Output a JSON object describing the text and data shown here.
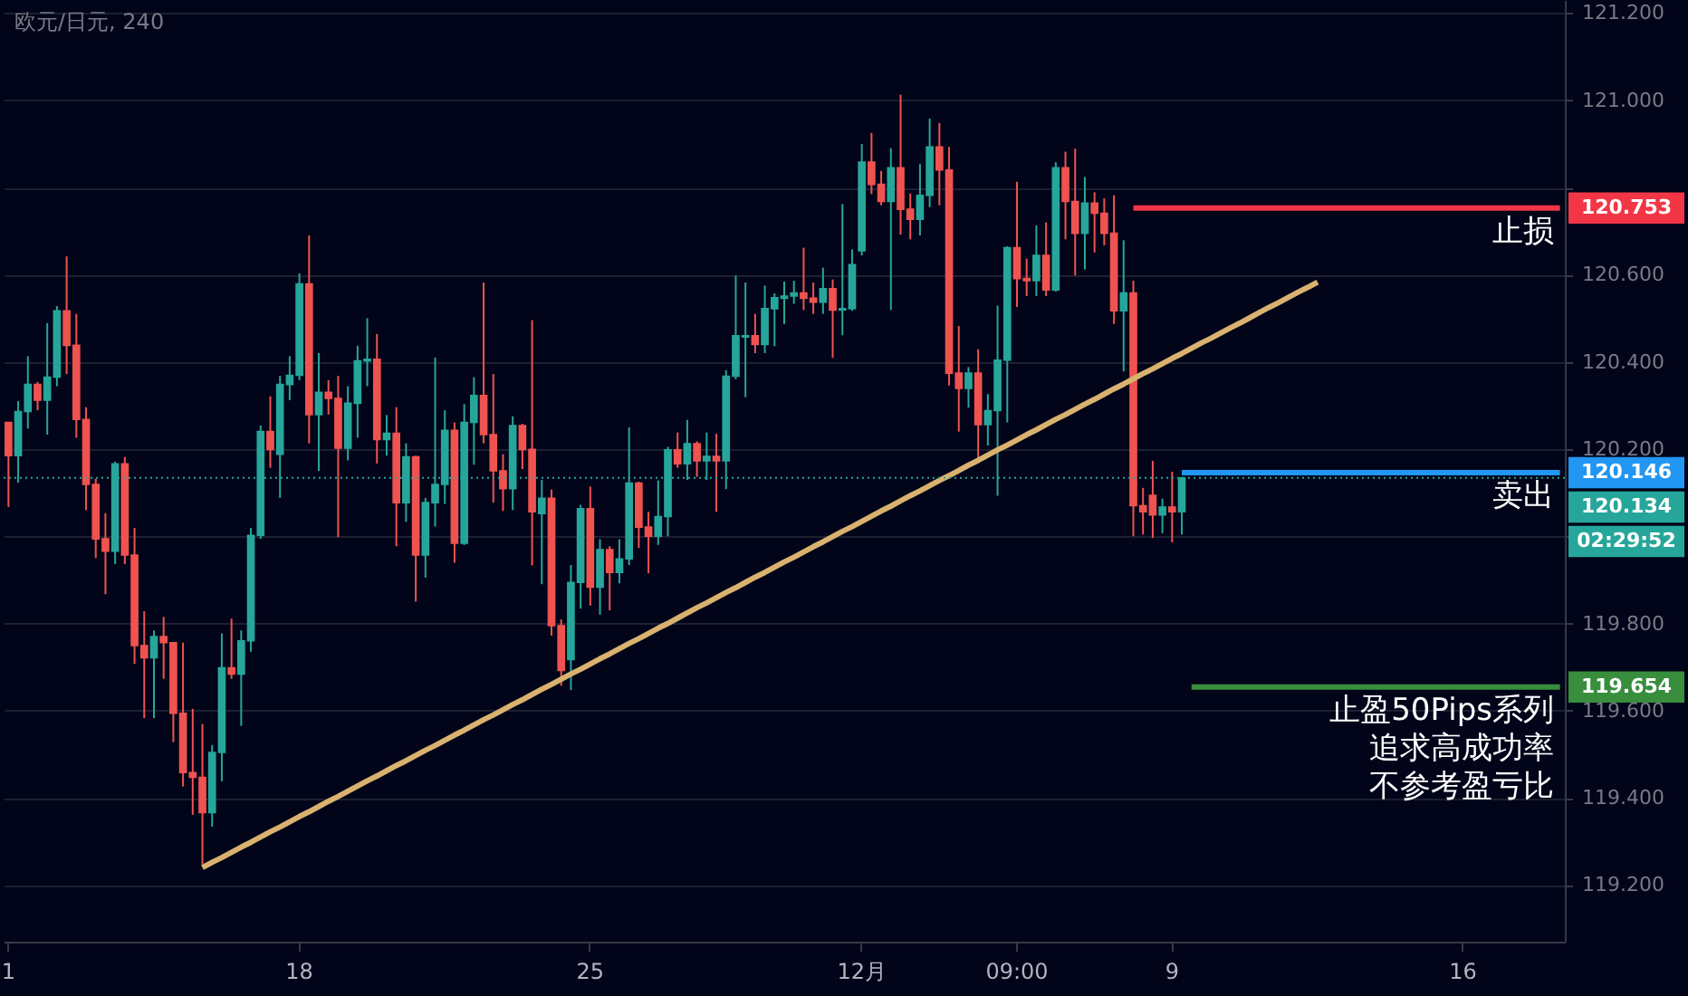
{
  "chart_data": {
    "type": "candlestick",
    "title": "欧元/日元, 240",
    "categories": [
      "1",
      null,
      null,
      null,
      null,
      null,
      null,
      null,
      null,
      null,
      null,
      null,
      null,
      null,
      null,
      null,
      null,
      null,
      null,
      null,
      null,
      null,
      null,
      null,
      null,
      null,
      null,
      null,
      null,
      null,
      "18",
      null,
      null,
      null,
      null,
      null,
      null,
      null,
      null,
      null,
      null,
      null,
      null,
      null,
      null,
      null,
      null,
      null,
      null,
      null,
      null,
      null,
      null,
      null,
      null,
      null,
      null,
      null,
      null,
      null,
      "25",
      null,
      null,
      null,
      null,
      null,
      null,
      null,
      null,
      null,
      null,
      null,
      null,
      null,
      null,
      null,
      null,
      null,
      null,
      null,
      null,
      null,
      null,
      null,
      null,
      null,
      null,
      null,
      "12月",
      null,
      null,
      null,
      null,
      null,
      null,
      null,
      null,
      null,
      null,
      null,
      null,
      null,
      null,
      null,
      "09:00",
      null,
      null,
      null,
      null,
      null,
      null,
      null,
      null,
      null,
      null,
      null,
      null,
      null,
      null,
      null,
      "9",
      null,
      null,
      null,
      null,
      null,
      null,
      null,
      null,
      null,
      null,
      null,
      null,
      null,
      null,
      null,
      null,
      null,
      null,
      null,
      null,
      null,
      null,
      null,
      null,
      null,
      null,
      null,
      null,
      null,
      "16",
      null,
      null,
      null,
      null,
      null,
      null,
      null,
      null,
      null,
      null
    ],
    "ohlc": [
      [
        120.261,
        120.261,
        120.067,
        120.185
      ],
      [
        120.185,
        120.31,
        120.123,
        120.286
      ],
      [
        120.286,
        120.413,
        120.247,
        120.348
      ],
      [
        120.348,
        120.354,
        120.289,
        120.312
      ],
      [
        120.312,
        120.489,
        120.233,
        120.365
      ],
      [
        120.365,
        120.528,
        120.344,
        120.517
      ],
      [
        120.517,
        120.642,
        120.372,
        120.438
      ],
      [
        120.438,
        120.51,
        120.226,
        120.268
      ],
      [
        120.268,
        120.296,
        120.06,
        120.119
      ],
      [
        120.119,
        120.132,
        119.95,
        119.994
      ],
      [
        119.994,
        120.053,
        119.867,
        119.966
      ],
      [
        119.966,
        120.171,
        119.936,
        120.166
      ],
      [
        120.166,
        120.182,
        119.936,
        119.957
      ],
      [
        119.957,
        120.019,
        119.707,
        119.749
      ],
      [
        119.749,
        119.828,
        119.583,
        119.721
      ],
      [
        119.721,
        119.784,
        119.583,
        119.77
      ],
      [
        119.77,
        119.815,
        119.673,
        119.756
      ],
      [
        119.756,
        119.756,
        119.528,
        119.594
      ],
      [
        119.594,
        119.756,
        119.426,
        119.458
      ],
      [
        119.458,
        119.604,
        119.361,
        119.447
      ],
      [
        119.447,
        119.569,
        119.247,
        119.366
      ],
      [
        119.366,
        119.521,
        119.334,
        119.504
      ],
      [
        119.504,
        119.777,
        119.438,
        119.698
      ],
      [
        119.698,
        119.811,
        119.673,
        119.684
      ],
      [
        119.684,
        119.784,
        119.565,
        119.76
      ],
      [
        119.76,
        120.019,
        119.735,
        120.002
      ],
      [
        120.002,
        120.254,
        119.994,
        120.24
      ],
      [
        120.24,
        120.321,
        120.157,
        120.199
      ],
      [
        120.188,
        120.368,
        120.088,
        120.348
      ],
      [
        120.348,
        120.413,
        120.312,
        120.369
      ],
      [
        120.369,
        120.603,
        120.358,
        120.579
      ],
      [
        120.579,
        120.69,
        120.213,
        120.279
      ],
      [
        120.279,
        120.42,
        120.15,
        120.33
      ],
      [
        120.33,
        120.358,
        120.279,
        120.316
      ],
      [
        120.316,
        120.368,
        119.998,
        120.202
      ],
      [
        120.202,
        120.344,
        120.174,
        120.305
      ],
      [
        120.305,
        120.437,
        120.226,
        120.402
      ],
      [
        120.402,
        120.5,
        120.344,
        120.406
      ],
      [
        120.406,
        120.464,
        120.167,
        120.222
      ],
      [
        120.222,
        120.278,
        120.185,
        120.236
      ],
      [
        120.236,
        120.296,
        119.977,
        120.077
      ],
      [
        120.077,
        120.213,
        120.033,
        120.182
      ],
      [
        120.182,
        120.185,
        119.85,
        119.957
      ],
      [
        119.957,
        120.088,
        119.905,
        120.077
      ],
      [
        120.077,
        120.41,
        120.022,
        120.119
      ],
      [
        120.119,
        120.289,
        120.074,
        120.243
      ],
      [
        120.243,
        120.261,
        119.939,
        119.984
      ],
      [
        119.984,
        120.303,
        119.98,
        120.261
      ],
      [
        120.261,
        120.365,
        120.164,
        120.323
      ],
      [
        120.323,
        120.582,
        120.213,
        120.233
      ],
      [
        120.233,
        120.372,
        120.077,
        120.15
      ],
      [
        120.15,
        120.188,
        120.058,
        120.109
      ],
      [
        120.109,
        120.275,
        120.06,
        120.254
      ],
      [
        120.254,
        120.258,
        120.154,
        120.199
      ],
      [
        120.199,
        120.496,
        119.933,
        120.056
      ],
      [
        120.052,
        120.129,
        119.89,
        120.087
      ],
      [
        120.087,
        120.107,
        119.772,
        119.795
      ],
      [
        119.795,
        119.809,
        119.657,
        119.692
      ],
      [
        119.717,
        119.934,
        119.647,
        119.894
      ],
      [
        119.894,
        120.072,
        119.834,
        120.063
      ],
      [
        120.063,
        120.114,
        119.841,
        119.883
      ],
      [
        119.883,
        119.993,
        119.82,
        119.969
      ],
      [
        119.969,
        119.977,
        119.83,
        119.917
      ],
      [
        119.917,
        119.993,
        119.892,
        119.948
      ],
      [
        119.948,
        120.25,
        119.934,
        120.122
      ],
      [
        120.122,
        120.125,
        119.973,
        120.021
      ],
      [
        120.021,
        120.056,
        119.915,
        120.0
      ],
      [
        120.0,
        120.128,
        119.98,
        120.045
      ],
      [
        120.045,
        120.205,
        120.0,
        120.198
      ],
      [
        120.198,
        120.238,
        120.157,
        120.166
      ],
      [
        120.166,
        120.267,
        120.129,
        120.212
      ],
      [
        120.212,
        120.218,
        120.136,
        120.173
      ],
      [
        120.173,
        120.238,
        120.129,
        120.183
      ],
      [
        120.183,
        120.235,
        120.056,
        120.173
      ],
      [
        120.173,
        120.381,
        120.108,
        120.367
      ],
      [
        120.367,
        120.598,
        120.36,
        120.46
      ],
      [
        120.457,
        120.582,
        120.319,
        120.46
      ],
      [
        120.46,
        120.51,
        120.42,
        120.44
      ],
      [
        120.44,
        120.575,
        120.42,
        120.522
      ],
      [
        120.522,
        120.557,
        120.436,
        120.547
      ],
      [
        120.546,
        120.584,
        120.487,
        120.551
      ],
      [
        120.551,
        120.586,
        120.533,
        120.558
      ],
      [
        120.558,
        120.662,
        120.519,
        120.546
      ],
      [
        120.546,
        120.582,
        120.51,
        120.537
      ],
      [
        120.537,
        120.616,
        120.51,
        120.568
      ],
      [
        120.568,
        120.589,
        120.409,
        120.519
      ],
      [
        120.519,
        120.762,
        120.461,
        120.522
      ],
      [
        120.522,
        120.658,
        120.517,
        120.623
      ],
      [
        120.655,
        120.9,
        120.644,
        120.858
      ],
      [
        120.858,
        120.925,
        120.785,
        120.807
      ],
      [
        120.807,
        120.838,
        120.759,
        120.768
      ],
      [
        120.768,
        120.89,
        120.519,
        120.845
      ],
      [
        120.845,
        121.013,
        120.692,
        120.75
      ],
      [
        120.75,
        120.786,
        120.681,
        120.727
      ],
      [
        120.727,
        120.854,
        120.69,
        120.782
      ],
      [
        120.782,
        120.958,
        120.755,
        120.893
      ],
      [
        120.893,
        120.948,
        120.759,
        120.84
      ],
      [
        120.84,
        120.893,
        120.346,
        120.374
      ],
      [
        120.374,
        120.482,
        120.24,
        120.339
      ],
      [
        120.339,
        120.388,
        120.295,
        120.374
      ],
      [
        120.374,
        120.429,
        120.18,
        120.256
      ],
      [
        120.256,
        120.326,
        120.208,
        120.288
      ],
      [
        120.288,
        120.529,
        120.093,
        120.404
      ],
      [
        120.404,
        120.665,
        120.261,
        120.662
      ],
      [
        120.662,
        120.813,
        120.526,
        120.591
      ],
      [
        120.591,
        120.637,
        120.551,
        120.586
      ],
      [
        120.586,
        120.713,
        120.551,
        120.644
      ],
      [
        120.644,
        120.72,
        120.551,
        120.565
      ],
      [
        120.565,
        120.858,
        120.561,
        120.845
      ],
      [
        120.845,
        120.882,
        120.681,
        120.768
      ],
      [
        120.768,
        120.889,
        120.598,
        120.695
      ],
      [
        120.695,
        120.824,
        120.612,
        120.764
      ],
      [
        120.764,
        120.789,
        120.651,
        120.741
      ],
      [
        120.741,
        120.775,
        120.667,
        120.695
      ],
      [
        120.695,
        120.782,
        120.487,
        120.517
      ],
      [
        120.517,
        120.679,
        120.378,
        120.558
      ],
      [
        120.558,
        120.586,
        120.0,
        120.07
      ],
      [
        120.07,
        120.111,
        120.004,
        120.056
      ],
      [
        120.094,
        120.173,
        119.996,
        120.049
      ],
      [
        120.049,
        120.086,
        120.007,
        120.067
      ],
      [
        120.067,
        120.148,
        119.986,
        120.056
      ],
      [
        120.056,
        120.136,
        120.004,
        120.134
      ],
      null,
      null,
      null,
      null,
      null,
      null,
      null,
      null,
      null,
      null,
      null,
      null,
      null,
      null,
      null,
      null,
      null,
      null,
      null,
      null,
      null,
      null,
      null,
      null,
      null,
      null,
      null,
      null,
      null,
      null,
      null,
      null,
      null,
      null,
      null,
      null,
      null,
      null,
      null
    ],
    "colors": [
      "#ef5350",
      "#26a69a",
      "#26a69a",
      "#ef5350",
      "#26a69a",
      "#26a69a",
      "#ef5350",
      "#ef5350",
      "#ef5350",
      "#ef5350",
      "#ef5350",
      "#26a69a",
      "#ef5350",
      "#ef5350",
      "#ef5350",
      "#26a69a",
      "#ef5350",
      "#ef5350",
      "#ef5350",
      "#ef5350",
      "#ef5350",
      "#26a69a",
      "#26a69a",
      "#ef5350",
      "#26a69a",
      "#26a69a",
      "#26a69a",
      "#ef5350",
      "#26a69a",
      "#26a69a",
      "#26a69a",
      "#ef5350",
      "#26a69a",
      "#ef5350",
      "#ef5350",
      "#26a69a",
      "#26a69a",
      "#26a69a",
      "#ef5350",
      "#26a69a",
      "#ef5350",
      "#26a69a",
      "#ef5350",
      "#26a69a",
      "#26a69a",
      "#26a69a",
      "#ef5350",
      "#26a69a",
      "#26a69a",
      "#ef5350",
      "#ef5350",
      "#ef5350",
      "#26a69a",
      "#ef5350",
      "#ef5350",
      "#26a69a",
      "#ef5350",
      "#ef5350",
      "#26a69a",
      "#26a69a",
      "#ef5350",
      "#26a69a",
      "#ef5350",
      "#26a69a",
      "#26a69a",
      "#ef5350",
      "#ef5350",
      "#26a69a",
      "#26a69a",
      "#ef5350",
      "#26a69a",
      "#ef5350",
      "#26a69a",
      "#ef5350",
      "#26a69a",
      "#26a69a",
      "#26a69a",
      "#ef5350",
      "#26a69a",
      "#26a69a",
      "#26a69a",
      "#26a69a",
      "#ef5350",
      "#ef5350",
      "#26a69a",
      "#ef5350",
      "#26a69a",
      "#26a69a",
      "#26a69a",
      "#ef5350",
      "#ef5350",
      "#26a69a",
      "#ef5350",
      "#ef5350",
      "#26a69a",
      "#26a69a",
      "#ef5350",
      "#ef5350",
      "#ef5350",
      "#26a69a",
      "#ef5350",
      "#26a69a",
      "#26a69a",
      "#26a69a",
      "#ef5350",
      "#ef5350",
      "#26a69a",
      "#ef5350",
      "#26a69a",
      "#ef5350",
      "#ef5350",
      "#26a69a",
      "#ef5350",
      "#ef5350",
      "#ef5350",
      "#26a69a",
      "#ef5350",
      "#ef5350",
      "#ef5350",
      "#26a69a",
      "#ef5350",
      "#26a69a",
      null,
      null,
      null,
      null,
      null,
      null,
      null,
      null,
      null,
      null,
      null,
      null,
      null,
      null,
      null,
      null,
      null,
      null,
      null,
      null,
      null,
      null,
      null,
      null,
      null,
      null,
      null,
      null,
      null,
      null,
      null,
      null,
      null,
      null,
      null,
      null,
      null,
      null,
      null
    ],
    "series": [
      {
        "type": "line",
        "color": "#d9b26f",
        "values": [
          null,
          null,
          null,
          null,
          null,
          null,
          null,
          null,
          null,
          null,
          null,
          null,
          null,
          null,
          null,
          null,
          null,
          null,
          null,
          null,
          119.24,
          119.252,
          119.263,
          119.275,
          119.287,
          119.298,
          119.31,
          119.322,
          119.333,
          119.345,
          119.357,
          119.368,
          119.38,
          119.392,
          119.403,
          119.415,
          119.427,
          119.439,
          119.45,
          119.462,
          119.474,
          119.485,
          119.497,
          119.509,
          119.52,
          119.532,
          119.544,
          119.555,
          119.567,
          119.579,
          119.59,
          119.602,
          119.614,
          119.625,
          119.637,
          119.649,
          119.66,
          119.672,
          119.684,
          119.695,
          119.707,
          119.719,
          119.73,
          119.742,
          119.754,
          119.765,
          119.777,
          119.789,
          119.8,
          119.812,
          119.824,
          119.836,
          119.847,
          119.859,
          119.871,
          119.882,
          119.894,
          119.906,
          119.917,
          119.929,
          119.941,
          119.952,
          119.964,
          119.976,
          119.987,
          119.999,
          120.011,
          120.022,
          120.034,
          120.046,
          120.058,
          120.069,
          120.081,
          120.093,
          120.104,
          120.116,
          120.128,
          120.139,
          120.151,
          120.163,
          120.174,
          120.186,
          120.198,
          120.209,
          120.221,
          120.233,
          120.244,
          120.256,
          120.268,
          120.279,
          120.291,
          120.303,
          120.314,
          120.326,
          120.338,
          120.349,
          120.361,
          120.373,
          120.384,
          120.396,
          120.408,
          120.419,
          120.431,
          120.443,
          120.454,
          120.466,
          120.478,
          120.489,
          120.501,
          120.513,
          120.525,
          120.536,
          120.548,
          120.56,
          120.571,
          120.583,
          null,
          null,
          null,
          null,
          null,
          null,
          null,
          null,
          null,
          null,
          null,
          null,
          null,
          null,
          null,
          null,
          null,
          null,
          null,
          null,
          null,
          null,
          null,
          null,
          null
        ]
      },
      {
        "type": "line",
        "color": "#f23645",
        "values": [
          null,
          null,
          null,
          null,
          null,
          null,
          null,
          null,
          null,
          null,
          null,
          null,
          null,
          null,
          null,
          null,
          null,
          null,
          null,
          null,
          null,
          null,
          null,
          null,
          null,
          null,
          null,
          null,
          null,
          null,
          null,
          null,
          null,
          null,
          null,
          null,
          null,
          null,
          null,
          null,
          null,
          null,
          null,
          null,
          null,
          null,
          null,
          null,
          null,
          null,
          null,
          null,
          null,
          null,
          null,
          null,
          null,
          null,
          null,
          null,
          null,
          null,
          null,
          null,
          null,
          null,
          null,
          null,
          null,
          null,
          null,
          null,
          null,
          null,
          null,
          null,
          null,
          null,
          null,
          null,
          null,
          null,
          null,
          null,
          null,
          null,
          null,
          null,
          null,
          null,
          null,
          null,
          null,
          null,
          null,
          null,
          null,
          null,
          null,
          null,
          null,
          null,
          null,
          null,
          null,
          null,
          null,
          null,
          null,
          null,
          null,
          null,
          null,
          null,
          null,
          null,
          120.753,
          120.753,
          120.753,
          120.753,
          120.753,
          120.753,
          120.753,
          120.753,
          120.753,
          120.753,
          120.753,
          120.753,
          120.753,
          120.753,
          120.753,
          120.753,
          120.753,
          120.753,
          120.753,
          120.753,
          120.753,
          120.753,
          120.753,
          120.753,
          120.753,
          120.753,
          120.753,
          120.753,
          120.753,
          120.753,
          120.753,
          120.753,
          120.753,
          120.753,
          120.753,
          120.753,
          120.753,
          120.753,
          120.753,
          120.753,
          120.753,
          120.753,
          120.753,
          120.753,
          120.753
        ],
        "value_labels": [
          null,
          null,
          null,
          null,
          null,
          null,
          null,
          null,
          null,
          null,
          null,
          null,
          null,
          null,
          null,
          null,
          null,
          null,
          null,
          null,
          null,
          null,
          null,
          null,
          null,
          null,
          null,
          null,
          null,
          null,
          null,
          null,
          null,
          null,
          null,
          null,
          null,
          null,
          null,
          null,
          null,
          null,
          null,
          null,
          null,
          null,
          null,
          null,
          null,
          null,
          null,
          null,
          null,
          null,
          null,
          null,
          null,
          null,
          null,
          null,
          null,
          null,
          null,
          null,
          null,
          null,
          null,
          null,
          null,
          null,
          null,
          null,
          null,
          null,
          null,
          null,
          null,
          null,
          null,
          null,
          null,
          null,
          null,
          null,
          null,
          null,
          null,
          null,
          null,
          null,
          null,
          null,
          null,
          null,
          null,
          null,
          null,
          null,
          null,
          null,
          null,
          null,
          null,
          null,
          null,
          null,
          null,
          null,
          null,
          null,
          null,
          null,
          null,
          null,
          null,
          null,
          null,
          null,
          null,
          null,
          null,
          null,
          null,
          null,
          null,
          null,
          null,
          null,
          null,
          null,
          null,
          null,
          null,
          null,
          null,
          null,
          null,
          null,
          null,
          null,
          null,
          null,
          null,
          null,
          null,
          null,
          null,
          null,
          null,
          null,
          null,
          null,
          null,
          null,
          null,
          null,
          null,
          null,
          null,
          null,
          "120.753"
        ]
      },
      {
        "type": "line",
        "color": "#2196f3",
        "values": [
          null,
          null,
          null,
          null,
          null,
          null,
          null,
          null,
          null,
          null,
          null,
          null,
          null,
          null,
          null,
          null,
          null,
          null,
          null,
          null,
          null,
          null,
          null,
          null,
          null,
          null,
          null,
          null,
          null,
          null,
          null,
          null,
          null,
          null,
          null,
          null,
          null,
          null,
          null,
          null,
          null,
          null,
          null,
          null,
          null,
          null,
          null,
          null,
          null,
          null,
          null,
          null,
          null,
          null,
          null,
          null,
          null,
          null,
          null,
          null,
          null,
          null,
          null,
          null,
          null,
          null,
          null,
          null,
          null,
          null,
          null,
          null,
          null,
          null,
          null,
          null,
          null,
          null,
          null,
          null,
          null,
          null,
          null,
          null,
          null,
          null,
          null,
          null,
          null,
          null,
          null,
          null,
          null,
          null,
          null,
          null,
          null,
          null,
          null,
          null,
          null,
          null,
          null,
          null,
          null,
          null,
          null,
          null,
          null,
          null,
          null,
          null,
          null,
          null,
          null,
          null,
          null,
          null,
          null,
          null,
          null,
          120.146,
          120.146,
          120.146,
          120.146,
          120.146,
          120.146,
          120.146,
          120.146,
          120.146,
          120.146,
          120.146,
          120.146,
          120.146,
          120.146,
          120.146,
          120.146,
          120.146,
          120.146,
          120.146,
          120.146,
          120.146,
          120.146,
          120.146,
          120.146,
          120.146,
          120.146,
          120.146,
          120.146,
          120.146,
          120.146,
          120.146,
          120.146,
          120.146,
          120.146,
          120.146,
          120.146,
          120.146,
          120.146,
          120.146,
          120.146
        ],
        "value_labels": [
          null,
          null,
          null,
          null,
          null,
          null,
          null,
          null,
          null,
          null,
          null,
          null,
          null,
          null,
          null,
          null,
          null,
          null,
          null,
          null,
          null,
          null,
          null,
          null,
          null,
          null,
          null,
          null,
          null,
          null,
          null,
          null,
          null,
          null,
          null,
          null,
          null,
          null,
          null,
          null,
          null,
          null,
          null,
          null,
          null,
          null,
          null,
          null,
          null,
          null,
          null,
          null,
          null,
          null,
          null,
          null,
          null,
          null,
          null,
          null,
          null,
          null,
          null,
          null,
          null,
          null,
          null,
          null,
          null,
          null,
          null,
          null,
          null,
          null,
          null,
          null,
          null,
          null,
          null,
          null,
          null,
          null,
          null,
          null,
          null,
          null,
          null,
          null,
          null,
          null,
          null,
          null,
          null,
          null,
          null,
          null,
          null,
          null,
          null,
          null,
          null,
          null,
          null,
          null,
          null,
          null,
          null,
          null,
          null,
          null,
          null,
          null,
          null,
          null,
          null,
          null,
          null,
          null,
          null,
          null,
          null,
          null,
          null,
          null,
          null,
          null,
          null,
          null,
          null,
          null,
          null,
          null,
          null,
          null,
          null,
          null,
          null,
          null,
          null,
          null,
          null,
          null,
          null,
          null,
          null,
          null,
          null,
          null,
          null,
          null,
          null,
          null,
          null,
          null,
          null,
          null,
          null,
          null,
          null,
          null,
          "120.146"
        ]
      },
      {
        "type": "line",
        "color": "#388e3c",
        "values": [
          null,
          null,
          null,
          null,
          null,
          null,
          null,
          null,
          null,
          null,
          null,
          null,
          null,
          null,
          null,
          null,
          null,
          null,
          null,
          null,
          null,
          null,
          null,
          null,
          null,
          null,
          null,
          null,
          null,
          null,
          null,
          null,
          null,
          null,
          null,
          null,
          null,
          null,
          null,
          null,
          null,
          null,
          null,
          null,
          null,
          null,
          null,
          null,
          null,
          null,
          null,
          null,
          null,
          null,
          null,
          null,
          null,
          null,
          null,
          null,
          null,
          null,
          null,
          null,
          null,
          null,
          null,
          null,
          null,
          null,
          null,
          null,
          null,
          null,
          null,
          null,
          null,
          null,
          null,
          null,
          null,
          null,
          null,
          null,
          null,
          null,
          null,
          null,
          null,
          null,
          null,
          null,
          null,
          null,
          null,
          null,
          null,
          null,
          null,
          null,
          null,
          null,
          null,
          null,
          null,
          null,
          null,
          null,
          null,
          null,
          null,
          null,
          null,
          null,
          null,
          null,
          null,
          null,
          null,
          null,
          null,
          null,
          119.654,
          119.654,
          119.654,
          119.654,
          119.654,
          119.654,
          119.654,
          119.654,
          119.654,
          119.654,
          119.654,
          119.654,
          119.654,
          119.654,
          119.654,
          119.654,
          119.654,
          119.654,
          119.654,
          119.654,
          119.654,
          119.654,
          119.654,
          119.654,
          119.654,
          119.654,
          119.654,
          119.654,
          119.654,
          119.654,
          119.654,
          119.654,
          119.654,
          119.654,
          119.654,
          119.654,
          119.654,
          119.654,
          119.654
        ],
        "value_labels": [
          null,
          null,
          null,
          null,
          null,
          null,
          null,
          null,
          null,
          null,
          null,
          null,
          null,
          null,
          null,
          null,
          null,
          null,
          null,
          null,
          null,
          null,
          null,
          null,
          null,
          null,
          null,
          null,
          null,
          null,
          null,
          null,
          null,
          null,
          null,
          null,
          null,
          null,
          null,
          null,
          null,
          null,
          null,
          null,
          null,
          null,
          null,
          null,
          null,
          null,
          null,
          null,
          null,
          null,
          null,
          null,
          null,
          null,
          null,
          null,
          null,
          null,
          null,
          null,
          null,
          null,
          null,
          null,
          null,
          null,
          null,
          null,
          null,
          null,
          null,
          null,
          null,
          null,
          null,
          null,
          null,
          null,
          null,
          null,
          null,
          null,
          null,
          null,
          null,
          null,
          null,
          null,
          null,
          null,
          null,
          null,
          null,
          null,
          null,
          null,
          null,
          null,
          null,
          null,
          null,
          null,
          null,
          null,
          null,
          null,
          null,
          null,
          null,
          null,
          null,
          null,
          null,
          null,
          null,
          null,
          null,
          null,
          null,
          null,
          null,
          null,
          null,
          null,
          null,
          null,
          null,
          null,
          null,
          null,
          null,
          null,
          null,
          null,
          null,
          null,
          null,
          null,
          null,
          null,
          null,
          null,
          null,
          null,
          null,
          null,
          null,
          null,
          null,
          null,
          null,
          null,
          null,
          null,
          null,
          null,
          "119.654"
        ]
      }
    ],
    "ref_lines": [
      {
        "axis": "y",
        "value": 120.134,
        "label": "120.134",
        "color": "#26a69a",
        "line_style": "dotted"
      }
    ],
    "annotations": [
      {
        "text": "止损",
        "y": 120.753
      },
      {
        "text": "卖出",
        "y": 120.146
      },
      {
        "text": "止盈50Pips系列",
        "y": 119.654
      },
      {
        "text": "追求高成功率",
        "y": 119.654
      },
      {
        "text": "不参考盈亏比",
        "y": 119.654
      },
      "02:29:52"
    ],
    "ylim": [
      119.07,
      121.23
    ],
    "yticks": [
      {
        "value": 119.2,
        "label": "119.200"
      },
      {
        "value": 119.4,
        "label": "119.400"
      },
      {
        "value": 119.6,
        "label": "119.600"
      },
      {
        "value": 119.8,
        "label": "119.800"
      },
      {
        "value": 120.0,
        "label": null
      },
      {
        "value": 120.2,
        "label": "120.200"
      },
      {
        "value": 120.4,
        "label": "120.400"
      },
      {
        "value": 120.6,
        "label": "120.600"
      },
      {
        "value": 120.8,
        "label": null
      },
      {
        "value": 121.0,
        "label": "121.000"
      },
      {
        "value": 121.2,
        "label": "121.200"
      }
    ],
    "grid": "y"
  }
}
